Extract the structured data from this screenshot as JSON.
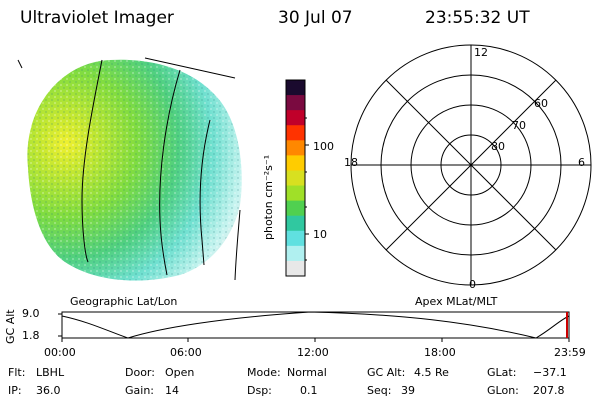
{
  "header": {
    "instrument": "Ultraviolet Imager",
    "date": "30 Jul 07",
    "time": "23:55:32 UT"
  },
  "left_panel": {
    "label": "Geographic Lat/Lon"
  },
  "right_panel": {
    "label": "Apex MLat/MLT",
    "mlt_labels": [
      "12",
      "18",
      "6",
      "0"
    ],
    "mlat_labels": [
      "60",
      "70",
      "80"
    ]
  },
  "colorbar": {
    "unit_label": "photon cm⁻²s⁻¹",
    "ticks": [
      "100",
      "10"
    ],
    "colors": [
      "#1a0a2e",
      "#7a0a40",
      "#c0002a",
      "#ff3300",
      "#ff8800",
      "#ffcc00",
      "#d8e020",
      "#a0e028",
      "#50d050",
      "#30c8a0",
      "#60e0e0",
      "#b0f0f0",
      "#e8e8e8"
    ]
  },
  "timeline": {
    "axis_label": "GC Alt",
    "y_ticks": [
      "9.0",
      "1.8"
    ],
    "x_ticks": [
      "00:00",
      "06:00",
      "12:00",
      "18:00",
      "23:59"
    ]
  },
  "status": {
    "flt_label": "Flt:",
    "flt_value": "LBHL",
    "ip_label": "IP:",
    "ip_value": "36.0",
    "door_label": "Door:",
    "door_value": "Open",
    "gain_label": "Gain:",
    "gain_value": "14",
    "mode_label": "Mode:",
    "mode_value": "Normal",
    "dsp_label": "Dsp:",
    "dsp_value": "0.1",
    "gcalt_label": "GC Alt:",
    "gcalt_value": "4.5 Re",
    "seq_label": "Seq:",
    "seq_value": "39",
    "glat_label": "GLat:",
    "glat_value": "−37.1",
    "glon_label": "GLon:",
    "glon_value": "207.8"
  }
}
